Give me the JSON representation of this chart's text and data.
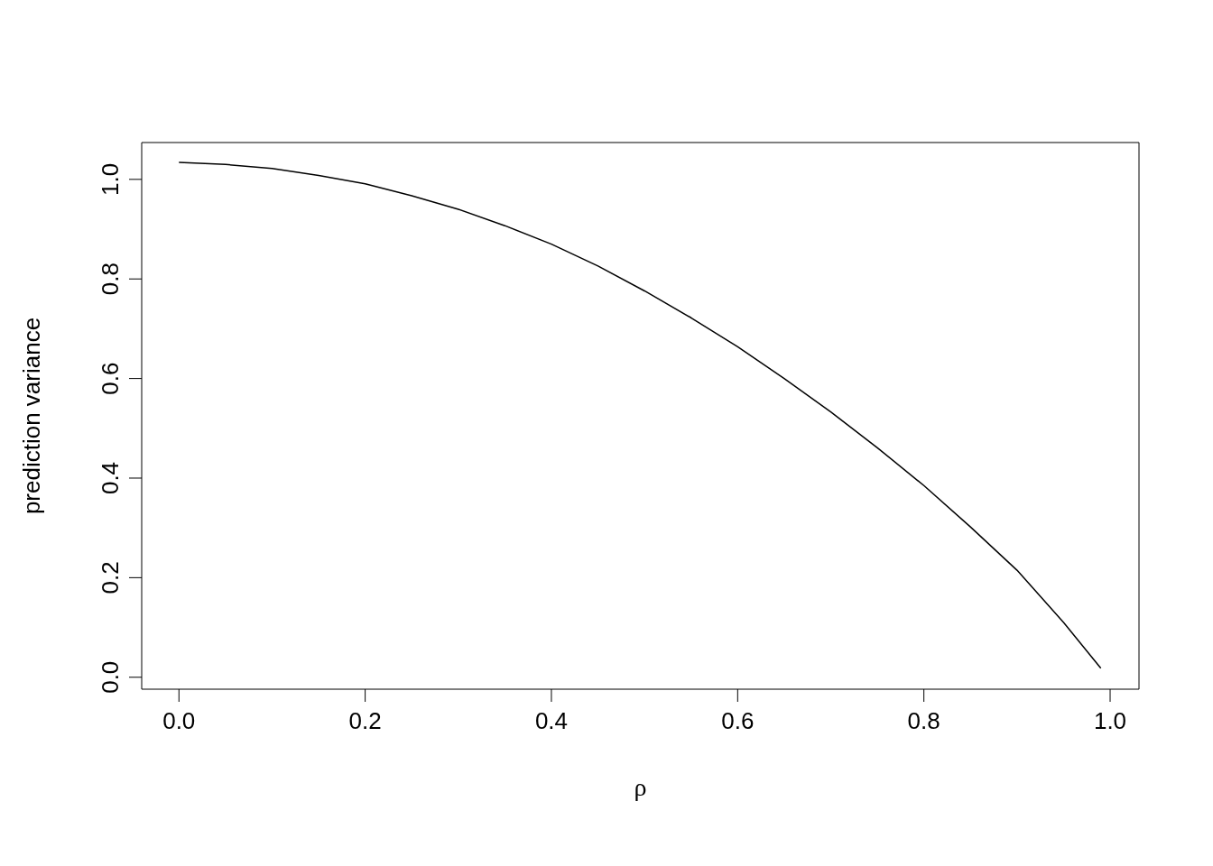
{
  "chart_data": {
    "type": "line",
    "xlabel": "ρ",
    "ylabel": "prediction variance",
    "x": [
      0,
      0.05,
      0.1,
      0.15,
      0.2,
      0.25,
      0.3,
      0.35,
      0.4,
      0.45,
      0.5,
      0.55,
      0.6,
      0.65,
      0.7,
      0.75,
      0.8,
      0.85,
      0.9,
      0.95,
      0.99
    ],
    "series": [
      {
        "color": "#000000",
        "values": [
          1.034,
          1.03,
          1.022,
          1.008,
          0.991,
          0.967,
          0.94,
          0.907,
          0.87,
          0.826,
          0.776,
          0.722,
          0.664,
          0.6,
          0.533,
          0.461,
          0.385,
          0.302,
          0.215,
          0.11,
          0.018
        ]
      }
    ],
    "xlim": [
      -0.04,
      1.031
    ],
    "ylim": [
      -0.024,
      1.074
    ],
    "xticks": [
      {
        "value": 0,
        "label": "0.0"
      },
      0.2,
      0.4,
      0.6,
      0.8,
      {
        "value": 1,
        "label": "1.0"
      }
    ],
    "yticks": [
      {
        "value": 0,
        "label": "0.0"
      },
      0.2,
      0.4,
      0.6,
      0.8,
      {
        "value": 1,
        "label": "1.0"
      }
    ],
    "grid": false
  }
}
